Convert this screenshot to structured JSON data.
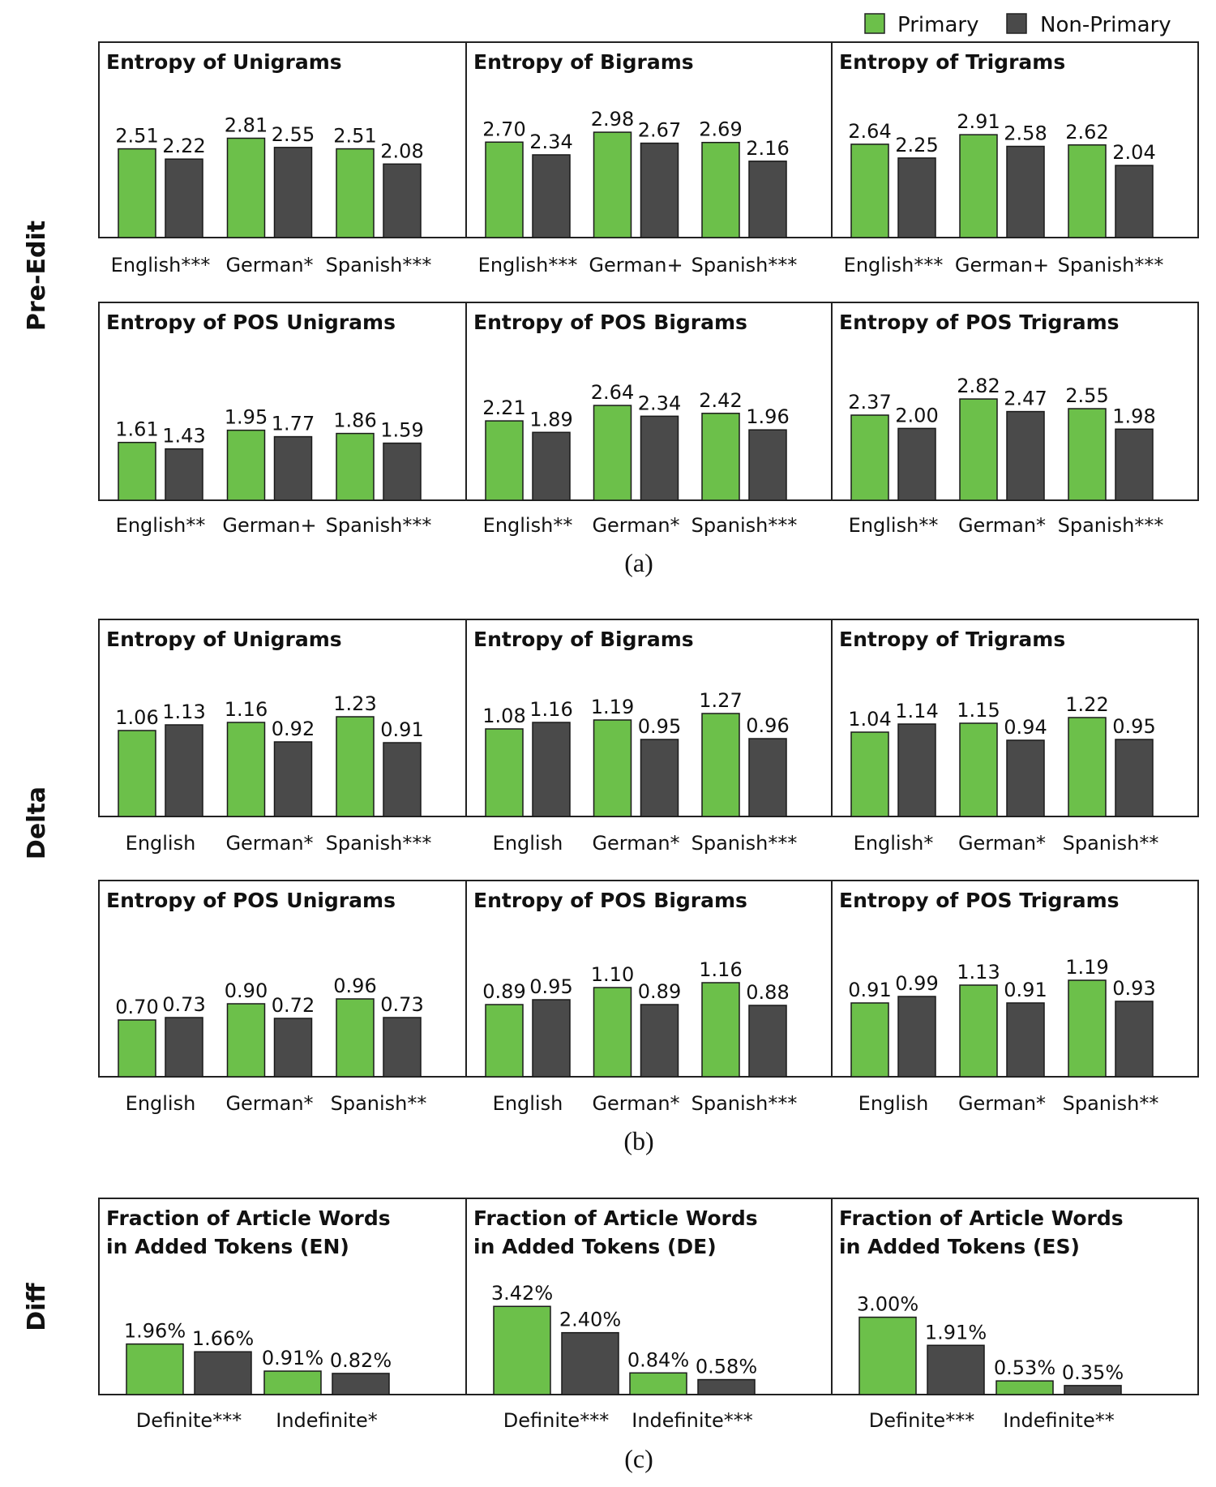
{
  "colors": {
    "primary": "#6cc04a",
    "non_primary": "#4a4a4a",
    "frame": "#222222",
    "text": "#111111"
  },
  "legend": {
    "primary": "Primary",
    "non_primary": "Non-Primary"
  },
  "row_labels": {
    "pre_edit": "Pre-Edit",
    "delta": "Delta",
    "diff": "Diff"
  },
  "captions": {
    "a": "(a)",
    "b": "(b)",
    "c": "(c)"
  },
  "chart_data": [
    {
      "type": "bar",
      "group": "Pre-Edit",
      "title": "Entropy of Unigrams",
      "categories": [
        "English***",
        "German*",
        "Spanish***"
      ],
      "series": [
        {
          "name": "Primary",
          "values": [
            2.51,
            2.81,
            2.51
          ],
          "labels": [
            "2.51",
            "2.81",
            "2.51"
          ]
        },
        {
          "name": "Non-Primary",
          "values": [
            2.22,
            2.55,
            2.08
          ],
          "labels": [
            "2.22",
            "2.55",
            "2.08"
          ]
        }
      ]
    },
    {
      "type": "bar",
      "group": "Pre-Edit",
      "title": "Entropy of Bigrams",
      "categories": [
        "English***",
        "German+",
        "Spanish***"
      ],
      "series": [
        {
          "name": "Primary",
          "values": [
            2.7,
            2.98,
            2.69
          ],
          "labels": [
            "2.70",
            "2.98",
            "2.69"
          ]
        },
        {
          "name": "Non-Primary",
          "values": [
            2.34,
            2.67,
            2.16
          ],
          "labels": [
            "2.34",
            "2.67",
            "2.16"
          ]
        }
      ]
    },
    {
      "type": "bar",
      "group": "Pre-Edit",
      "title": "Entropy of Trigrams",
      "categories": [
        "English***",
        "German+",
        "Spanish***"
      ],
      "series": [
        {
          "name": "Primary",
          "values": [
            2.64,
            2.91,
            2.62
          ],
          "labels": [
            "2.64",
            "2.91",
            "2.62"
          ]
        },
        {
          "name": "Non-Primary",
          "values": [
            2.25,
            2.58,
            2.04
          ],
          "labels": [
            "2.25",
            "2.58",
            "2.04"
          ]
        }
      ]
    },
    {
      "type": "bar",
      "group": "Pre-Edit",
      "title": "Entropy of POS Unigrams",
      "categories": [
        "English**",
        "German+",
        "Spanish***"
      ],
      "series": [
        {
          "name": "Primary",
          "values": [
            1.61,
            1.95,
            1.86
          ],
          "labels": [
            "1.61",
            "1.95",
            "1.86"
          ]
        },
        {
          "name": "Non-Primary",
          "values": [
            1.43,
            1.77,
            1.59
          ],
          "labels": [
            "1.43",
            "1.77",
            "1.59"
          ]
        }
      ]
    },
    {
      "type": "bar",
      "group": "Pre-Edit",
      "title": "Entropy of POS Bigrams",
      "categories": [
        "English**",
        "German*",
        "Spanish***"
      ],
      "series": [
        {
          "name": "Primary",
          "values": [
            2.21,
            2.64,
            2.42
          ],
          "labels": [
            "2.21",
            "2.64",
            "2.42"
          ]
        },
        {
          "name": "Non-Primary",
          "values": [
            1.89,
            2.34,
            1.96
          ],
          "labels": [
            "1.89",
            "2.34",
            "1.96"
          ]
        }
      ]
    },
    {
      "type": "bar",
      "group": "Pre-Edit",
      "title": "Entropy of POS Trigrams",
      "categories": [
        "English**",
        "German*",
        "Spanish***"
      ],
      "series": [
        {
          "name": "Primary",
          "values": [
            2.37,
            2.82,
            2.55
          ],
          "labels": [
            "2.37",
            "2.82",
            "2.55"
          ]
        },
        {
          "name": "Non-Primary",
          "values": [
            2.0,
            2.47,
            1.98
          ],
          "labels": [
            "2.00",
            "2.47",
            "1.98"
          ]
        }
      ]
    },
    {
      "type": "bar",
      "group": "Delta",
      "title": "Entropy of Unigrams",
      "categories": [
        "English",
        "German*",
        "Spanish***"
      ],
      "series": [
        {
          "name": "Primary",
          "values": [
            1.06,
            1.16,
            1.23
          ],
          "labels": [
            "1.06",
            "1.16",
            "1.23"
          ]
        },
        {
          "name": "Non-Primary",
          "values": [
            1.13,
            0.92,
            0.91
          ],
          "labels": [
            "1.13",
            "0.92",
            "0.91"
          ]
        }
      ]
    },
    {
      "type": "bar",
      "group": "Delta",
      "title": "Entropy of Bigrams",
      "categories": [
        "English",
        "German*",
        "Spanish***"
      ],
      "series": [
        {
          "name": "Primary",
          "values": [
            1.08,
            1.19,
            1.27
          ],
          "labels": [
            "1.08",
            "1.19",
            "1.27"
          ]
        },
        {
          "name": "Non-Primary",
          "values": [
            1.16,
            0.95,
            0.96
          ],
          "labels": [
            "1.16",
            "0.95",
            "0.96"
          ]
        }
      ]
    },
    {
      "type": "bar",
      "group": "Delta",
      "title": "Entropy of Trigrams",
      "categories": [
        "English*",
        "German*",
        "Spanish**"
      ],
      "series": [
        {
          "name": "Primary",
          "values": [
            1.04,
            1.15,
            1.22
          ],
          "labels": [
            "1.04",
            "1.15",
            "1.22"
          ]
        },
        {
          "name": "Non-Primary",
          "values": [
            1.14,
            0.94,
            0.95
          ],
          "labels": [
            "1.14",
            "0.94",
            "0.95"
          ]
        }
      ]
    },
    {
      "type": "bar",
      "group": "Delta",
      "title": "Entropy of POS Unigrams",
      "categories": [
        "English",
        "German*",
        "Spanish**"
      ],
      "series": [
        {
          "name": "Primary",
          "values": [
            0.7,
            0.9,
            0.96
          ],
          "labels": [
            "0.70",
            "0.90",
            "0.96"
          ]
        },
        {
          "name": "Non-Primary",
          "values": [
            0.73,
            0.72,
            0.73
          ],
          "labels": [
            "0.73",
            "0.72",
            "0.73"
          ]
        }
      ]
    },
    {
      "type": "bar",
      "group": "Delta",
      "title": "Entropy of POS Bigrams",
      "categories": [
        "English",
        "German*",
        "Spanish***"
      ],
      "series": [
        {
          "name": "Primary",
          "values": [
            0.89,
            1.1,
            1.16
          ],
          "labels": [
            "0.89",
            "1.10",
            "1.16"
          ]
        },
        {
          "name": "Non-Primary",
          "values": [
            0.95,
            0.89,
            0.88
          ],
          "labels": [
            "0.95",
            "0.89",
            "0.88"
          ]
        }
      ]
    },
    {
      "type": "bar",
      "group": "Delta",
      "title": "Entropy of POS Trigrams",
      "categories": [
        "English",
        "German*",
        "Spanish**"
      ],
      "series": [
        {
          "name": "Primary",
          "values": [
            0.91,
            1.13,
            1.19
          ],
          "labels": [
            "0.91",
            "1.13",
            "1.19"
          ]
        },
        {
          "name": "Non-Primary",
          "values": [
            0.99,
            0.91,
            0.93
          ],
          "labels": [
            "0.99",
            "0.91",
            "0.93"
          ]
        }
      ]
    },
    {
      "type": "bar",
      "group": "Diff",
      "title": [
        "Fraction of Article Words",
        "in Added Tokens (EN)"
      ],
      "categories": [
        "Definite***",
        "Indefinite*"
      ],
      "series": [
        {
          "name": "Primary",
          "values": [
            1.96,
            0.91
          ],
          "labels": [
            "1.96%",
            "0.91%"
          ]
        },
        {
          "name": "Non-Primary",
          "values": [
            1.66,
            0.82
          ],
          "labels": [
            "1.66%",
            "0.82%"
          ]
        }
      ]
    },
    {
      "type": "bar",
      "group": "Diff",
      "title": [
        "Fraction of Article Words",
        "in Added Tokens (DE)"
      ],
      "categories": [
        "Definite***",
        "Indefinite***"
      ],
      "series": [
        {
          "name": "Primary",
          "values": [
            3.42,
            0.84
          ],
          "labels": [
            "3.42%",
            "0.84%"
          ]
        },
        {
          "name": "Non-Primary",
          "values": [
            2.4,
            0.58
          ],
          "labels": [
            "2.40%",
            "0.58%"
          ]
        }
      ]
    },
    {
      "type": "bar",
      "group": "Diff",
      "title": [
        "Fraction of Article Words",
        "in Added Tokens (ES)"
      ],
      "categories": [
        "Definite***",
        "Indefinite**"
      ],
      "series": [
        {
          "name": "Primary",
          "values": [
            3.0,
            0.53
          ],
          "labels": [
            "3.00%",
            "0.53%"
          ]
        },
        {
          "name": "Non-Primary",
          "values": [
            1.91,
            0.35
          ],
          "labels": [
            "1.91%",
            "0.35%"
          ]
        }
      ]
    }
  ]
}
